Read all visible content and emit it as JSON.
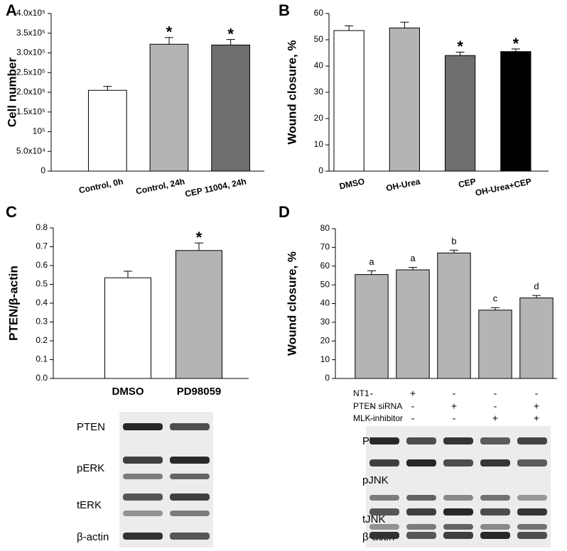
{
  "chart_data": [
    {
      "type": "bar",
      "panel": "A",
      "y_label": "Cell number",
      "categories": [
        "Control, 0h",
        "Control, 24h",
        "CEP 11004, 24h"
      ],
      "values": [
        205000,
        322000,
        320000
      ],
      "errors": [
        10000,
        17000,
        14000
      ],
      "bar_labels": [
        null,
        "*",
        "*"
      ],
      "colors": [
        "#ffffff",
        "#b4b4b4",
        "#6e6e6e"
      ],
      "ylim": [
        0,
        400000
      ],
      "yticks": [
        0,
        {
          "value": 50000,
          "label": "5.0x10⁴"
        },
        {
          "value": 100000,
          "label": "10⁵"
        },
        {
          "value": 150000,
          "label": "1.5x10⁵"
        },
        {
          "value": 200000,
          "label": "2.0x10⁵"
        },
        {
          "value": 250000,
          "label": "2.5x10⁵"
        },
        {
          "value": 300000,
          "label": "3.0x10⁵"
        },
        {
          "value": 350000,
          "label": "3.5x10⁵"
        },
        {
          "value": 400000,
          "label": "4.0x10⁵"
        }
      ]
    },
    {
      "type": "bar",
      "panel": "B",
      "y_label": "Wound closure, %",
      "categories": [
        "DMSO",
        "OH-Urea",
        "CEP",
        "OH-Urea+CEP"
      ],
      "values": [
        53.5,
        54.5,
        44,
        45.5
      ],
      "errors": [
        1.8,
        2.2,
        1.3,
        1
      ],
      "bar_labels": [
        null,
        null,
        "*",
        "*"
      ],
      "colors": [
        "#ffffff",
        "#b4b4b4",
        "#6e6e6e",
        "#000000"
      ],
      "ylim": [
        0,
        60
      ],
      "yticks": [
        0,
        10,
        20,
        30,
        40,
        50,
        60
      ]
    },
    {
      "type": "bar",
      "panel": "C",
      "y_label": "PTEN/β-actin",
      "categories": [
        "DMSO",
        "PD98059"
      ],
      "values": [
        0.535,
        0.68
      ],
      "errors": [
        0.035,
        0.04
      ],
      "bar_labels": [
        null,
        "*"
      ],
      "colors": [
        "#ffffff",
        "#b4b4b4"
      ],
      "ylim": [
        0,
        0.8
      ],
      "yticks": [
        {
          "value": 0,
          "label": "0.0"
        },
        0.1,
        0.2,
        0.3,
        0.4,
        0.5,
        0.6,
        0.7,
        0.8
      ],
      "blot_labels": [
        "PTEN",
        "pERK",
        "tERK",
        "β-actin"
      ]
    },
    {
      "type": "bar",
      "panel": "D",
      "y_label": "Wound closure, %",
      "values": [
        55.5,
        58,
        67,
        36.5,
        43
      ],
      "errors": [
        2,
        1.3,
        1.5,
        1.3,
        1.3
      ],
      "bar_labels": [
        "a",
        "a",
        "b",
        "c",
        "d"
      ],
      "colors": [
        "#b4b4b4",
        "#b4b4b4",
        "#b4b4b4",
        "#b4b4b4",
        "#b4b4b4"
      ],
      "ylim": [
        0,
        80
      ],
      "yticks": [
        0,
        10,
        20,
        30,
        40,
        50,
        60,
        70,
        80
      ],
      "conditions": [
        {
          "name": "NT1",
          "marks": [
            "-",
            "+",
            "-",
            "-",
            "-"
          ]
        },
        {
          "name": "PTEN siRNA",
          "marks": [
            "-",
            "-",
            "+",
            "-",
            "+"
          ]
        },
        {
          "name": "MLK inhibitor",
          "marks": [
            "-",
            "-",
            "-",
            "+",
            "+"
          ]
        }
      ],
      "blot_labels": [
        "PTEN",
        "pJNK",
        "tJNK",
        "β-actin"
      ]
    }
  ]
}
